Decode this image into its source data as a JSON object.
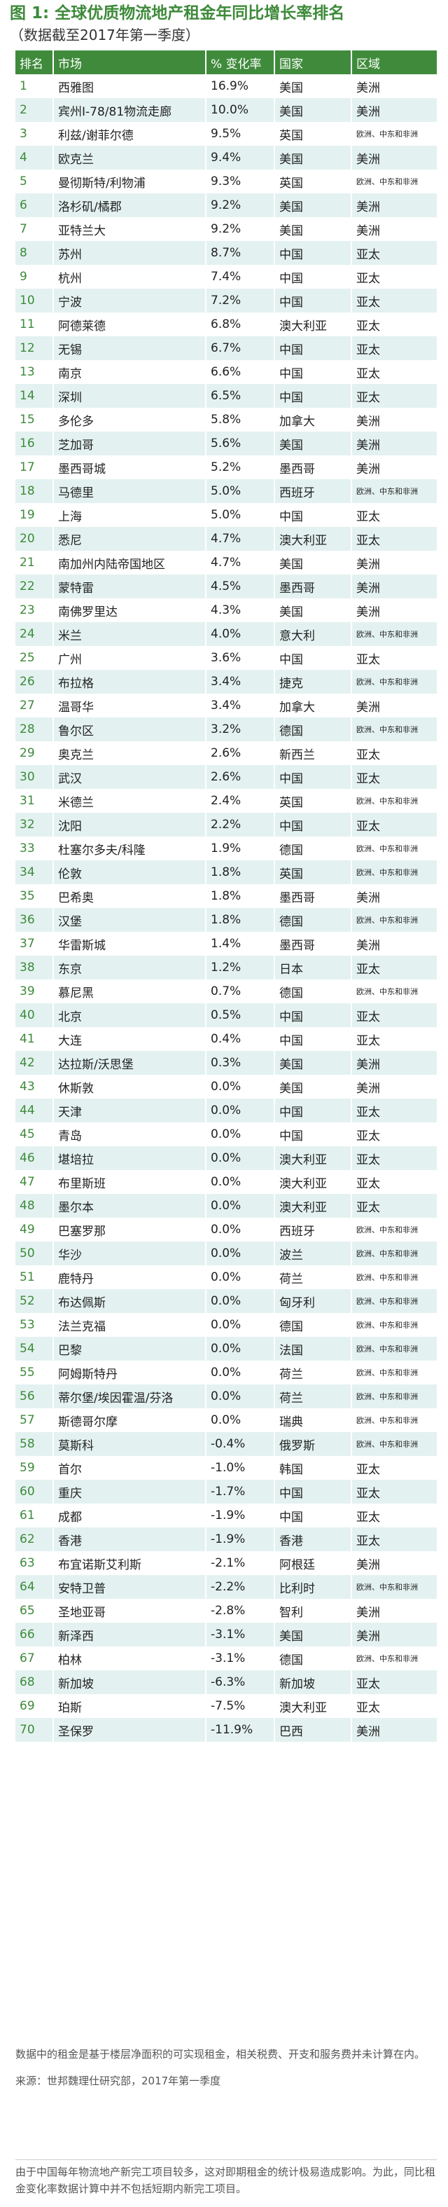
{
  "title": "图 1: 全球优质物流地产租金年同比增长率排名",
  "subtitle": "（数据截至2017年第一季度）",
  "table": {
    "headers": [
      "排名",
      "市场",
      "% 变化率",
      "国家",
      "区域"
    ],
    "rows": [
      {
        "rank": "1",
        "market": "西雅图",
        "change": "16.9%",
        "country": "美国",
        "region": "美洲"
      },
      {
        "rank": "2",
        "market": "宾州I-78/81物流走廊",
        "change": "10.0%",
        "country": "美国",
        "region": "美洲"
      },
      {
        "rank": "3",
        "market": "利兹/谢菲尔德",
        "change": "9.5%",
        "country": "英国",
        "region": "欧洲、中东和非洲"
      },
      {
        "rank": "4",
        "market": "欧克兰",
        "change": "9.4%",
        "country": "美国",
        "region": "美洲"
      },
      {
        "rank": "5",
        "market": "曼彻斯特/利物浦",
        "change": "9.3%",
        "country": "英国",
        "region": "欧洲、中东和非洲"
      },
      {
        "rank": "6",
        "market": "洛杉矶/橘郡",
        "change": "9.2%",
        "country": "美国",
        "region": "美洲"
      },
      {
        "rank": "7",
        "market": "亚特兰大",
        "change": "9.2%",
        "country": "美国",
        "region": "美洲"
      },
      {
        "rank": "8",
        "market": "苏州",
        "change": "8.7%",
        "country": "中国",
        "region": "亚太"
      },
      {
        "rank": "9",
        "market": "杭州",
        "change": "7.4%",
        "country": "中国",
        "region": "亚太"
      },
      {
        "rank": "10",
        "market": "宁波",
        "change": "7.2%",
        "country": "中国",
        "region": "亚太"
      },
      {
        "rank": "11",
        "market": "阿德莱德",
        "change": "6.8%",
        "country": "澳大利亚",
        "region": "亚太"
      },
      {
        "rank": "12",
        "market": "无锡",
        "change": "6.7%",
        "country": "中国",
        "region": "亚太"
      },
      {
        "rank": "13",
        "market": "南京",
        "change": "6.6%",
        "country": "中国",
        "region": "亚太"
      },
      {
        "rank": "14",
        "market": "深圳",
        "change": "6.5%",
        "country": "中国",
        "region": "亚太"
      },
      {
        "rank": "15",
        "market": "多伦多",
        "change": "5.8%",
        "country": "加拿大",
        "region": "美洲"
      },
      {
        "rank": "16",
        "market": "芝加哥",
        "change": "5.6%",
        "country": "美国",
        "region": "美洲"
      },
      {
        "rank": "17",
        "market": "墨西哥城",
        "change": "5.2%",
        "country": "墨西哥",
        "region": "美洲"
      },
      {
        "rank": "18",
        "market": "马德里",
        "change": "5.0%",
        "country": "西班牙",
        "region": "欧洲、中东和非洲"
      },
      {
        "rank": "19",
        "market": "上海",
        "change": "5.0%",
        "country": "中国",
        "region": "亚太"
      },
      {
        "rank": "20",
        "market": "悉尼",
        "change": "4.7%",
        "country": "澳大利亚",
        "region": "亚太"
      },
      {
        "rank": "21",
        "market": "南加州内陆帝国地区",
        "change": "4.7%",
        "country": "美国",
        "region": "美洲"
      },
      {
        "rank": "22",
        "market": "蒙特雷",
        "change": "4.5%",
        "country": "墨西哥",
        "region": "美洲"
      },
      {
        "rank": "23",
        "market": "南佛罗里达",
        "change": "4.3%",
        "country": "美国",
        "region": "美洲"
      },
      {
        "rank": "24",
        "market": "米兰",
        "change": "4.0%",
        "country": "意大利",
        "region": "欧洲、中东和非洲"
      },
      {
        "rank": "25",
        "market": "广州",
        "change": "3.6%",
        "country": "中国",
        "region": "亚太"
      },
      {
        "rank": "26",
        "market": "布拉格",
        "change": "3.4%",
        "country": "捷克",
        "region": "欧洲、中东和非洲"
      },
      {
        "rank": "27",
        "market": "温哥华",
        "change": "3.4%",
        "country": "加拿大",
        "region": "美洲"
      },
      {
        "rank": "28",
        "market": "鲁尔区",
        "change": "3.2%",
        "country": "德国",
        "region": "欧洲、中东和非洲"
      },
      {
        "rank": "29",
        "market": "奥克兰",
        "change": "2.6%",
        "country": "新西兰",
        "region": "亚太"
      },
      {
        "rank": "30",
        "market": "武汉",
        "change": "2.6%",
        "country": "中国",
        "region": "亚太"
      },
      {
        "rank": "31",
        "market": "米德兰",
        "change": "2.4%",
        "country": "英国",
        "region": "欧洲、中东和非洲"
      },
      {
        "rank": "32",
        "market": "沈阳",
        "change": "2.2%",
        "country": "中国",
        "region": "亚太"
      },
      {
        "rank": "33",
        "market": "杜塞尔多夫/科隆",
        "change": "1.9%",
        "country": "德国",
        "region": "欧洲、中东和非洲"
      },
      {
        "rank": "34",
        "market": "伦敦",
        "change": "1.8%",
        "country": "英国",
        "region": "欧洲、中东和非洲"
      },
      {
        "rank": "35",
        "market": "巴希奥",
        "change": "1.8%",
        "country": "墨西哥",
        "region": "美洲"
      },
      {
        "rank": "36",
        "market": "汉堡",
        "change": "1.8%",
        "country": "德国",
        "region": "欧洲、中东和非洲"
      },
      {
        "rank": "37",
        "market": "华雷斯城",
        "change": "1.4%",
        "country": "墨西哥",
        "region": "美洲"
      },
      {
        "rank": "38",
        "market": "东京",
        "change": "1.2%",
        "country": "日本",
        "region": "亚太"
      },
      {
        "rank": "39",
        "market": "慕尼黑",
        "change": "0.7%",
        "country": "德国",
        "region": "欧洲、中东和非洲"
      },
      {
        "rank": "40",
        "market": "北京",
        "change": "0.5%",
        "country": "中国",
        "region": "亚太"
      },
      {
        "rank": "41",
        "market": "大连",
        "change": "0.4%",
        "country": "中国",
        "region": "亚太"
      },
      {
        "rank": "42",
        "market": "达拉斯/沃思堡",
        "change": "0.3%",
        "country": "美国",
        "region": "美洲"
      },
      {
        "rank": "43",
        "market": "休斯敦",
        "change": "0.0%",
        "country": "美国",
        "region": "美洲"
      },
      {
        "rank": "44",
        "market": "天津",
        "change": "0.0%",
        "country": "中国",
        "region": "亚太"
      },
      {
        "rank": "45",
        "market": "青岛",
        "change": "0.0%",
        "country": "中国",
        "region": "亚太"
      },
      {
        "rank": "46",
        "market": "堪培拉",
        "change": "0.0%",
        "country": "澳大利亚",
        "region": "亚太"
      },
      {
        "rank": "47",
        "market": "布里斯班",
        "change": "0.0%",
        "country": "澳大利亚",
        "region": "亚太"
      },
      {
        "rank": "48",
        "market": "墨尔本",
        "change": "0.0%",
        "country": "澳大利亚",
        "region": "亚太"
      },
      {
        "rank": "49",
        "market": "巴塞罗那",
        "change": "0.0%",
        "country": "西班牙",
        "region": "欧洲、中东和非洲"
      },
      {
        "rank": "50",
        "market": "华沙",
        "change": "0.0%",
        "country": "波兰",
        "region": "欧洲、中东和非洲"
      },
      {
        "rank": "51",
        "market": "鹿特丹",
        "change": "0.0%",
        "country": "荷兰",
        "region": "欧洲、中东和非洲"
      },
      {
        "rank": "52",
        "market": "布达佩斯",
        "change": "0.0%",
        "country": "匈牙利",
        "region": "欧洲、中东和非洲"
      },
      {
        "rank": "53",
        "market": "法兰克福",
        "change": "0.0%",
        "country": "德国",
        "region": "欧洲、中东和非洲"
      },
      {
        "rank": "54",
        "market": "巴黎",
        "change": "0.0%",
        "country": "法国",
        "region": "欧洲、中东和非洲"
      },
      {
        "rank": "55",
        "market": "阿姆斯特丹",
        "change": "0.0%",
        "country": "荷兰",
        "region": "欧洲、中东和非洲"
      },
      {
        "rank": "56",
        "market": "蒂尔堡/埃因霍温/芬洛",
        "change": "0.0%",
        "country": "荷兰",
        "region": "欧洲、中东和非洲"
      },
      {
        "rank": "57",
        "market": "斯德哥尔摩",
        "change": "0.0%",
        "country": "瑞典",
        "region": "欧洲、中东和非洲"
      },
      {
        "rank": "58",
        "market": "莫斯科",
        "change": "-0.4%",
        "country": "俄罗斯",
        "region": "欧洲、中东和非洲"
      },
      {
        "rank": "59",
        "market": "首尔",
        "change": "-1.0%",
        "country": "韩国",
        "region": "亚太"
      },
      {
        "rank": "60",
        "market": "重庆",
        "change": "-1.7%",
        "country": "中国",
        "region": "亚太"
      },
      {
        "rank": "61",
        "market": "成都",
        "change": "-1.9%",
        "country": "中国",
        "region": "亚太"
      },
      {
        "rank": "62",
        "market": "香港",
        "change": "-1.9%",
        "country": "香港",
        "region": "亚太"
      },
      {
        "rank": "63",
        "market": "布宜诺斯艾利斯",
        "change": "-2.1%",
        "country": "阿根廷",
        "region": "美洲"
      },
      {
        "rank": "64",
        "market": "安特卫普",
        "change": "-2.2%",
        "country": "比利时",
        "region": "欧洲、中东和非洲"
      },
      {
        "rank": "65",
        "market": "圣地亚哥",
        "change": "-2.8%",
        "country": "智利",
        "region": "美洲"
      },
      {
        "rank": "66",
        "market": "新泽西",
        "change": "-3.1%",
        "country": "美国",
        "region": "美洲"
      },
      {
        "rank": "67",
        "market": "柏林",
        "change": "-3.1%",
        "country": "德国",
        "region": "欧洲、中东和非洲"
      },
      {
        "rank": "68",
        "market": "新加坡",
        "change": "-6.3%",
        "country": "新加坡",
        "region": "亚太"
      },
      {
        "rank": "69",
        "market": "珀斯",
        "change": "-7.5%",
        "country": "澳大利亚",
        "region": "亚太"
      },
      {
        "rank": "70",
        "market": "圣保罗",
        "change": "-11.9%",
        "country": "巴西",
        "region": "美洲"
      }
    ]
  },
  "notes": {
    "note1": "数据中的租金是基于楼层净面积的可实现租金，相关税费、开支和服务费并未计算在内。",
    "source": "来源：世邦魏理仕研究部，2017年第一季度",
    "note2": "由于中国每年物流地产新完工项目较多，这对即期租金的统计极易造成影响。为此，同比租金变化率数据计算中并不包括短期内新完工项目。"
  }
}
